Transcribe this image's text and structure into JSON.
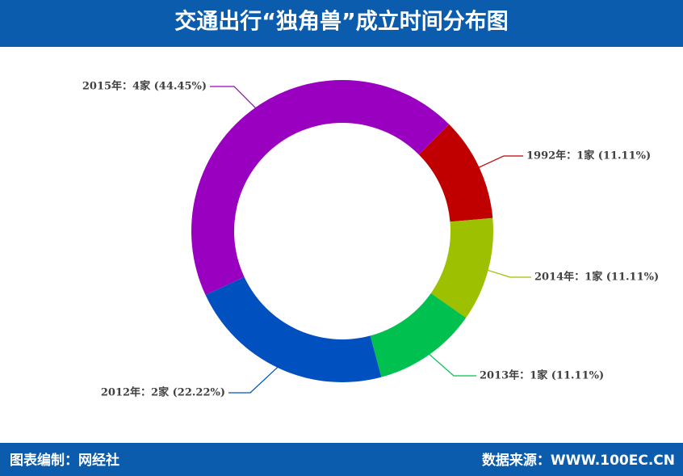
{
  "chart_data": {
    "type": "donut",
    "title": "交通出行“独角兽”成立时间分布图",
    "categories": [
      "1992年",
      "2014年",
      "2013年",
      "2012年",
      "2015年"
    ],
    "values": [
      1,
      1,
      1,
      2,
      4
    ],
    "value_labels": [
      "1992年：1家 (11.11%)",
      "2014年：1家 (11.11%)",
      "2013年：1家 (11.11%)",
      "2012年：2家 (22.22%)",
      "2015年：4家 (44.45%)"
    ],
    "colors": [
      "#c00000",
      "#9dc000",
      "#00c050",
      "#0050c0",
      "#9900c0"
    ]
  },
  "footer": {
    "left": "图表编制：网经社",
    "right": "数据来源：WWW.100EC.CN"
  }
}
